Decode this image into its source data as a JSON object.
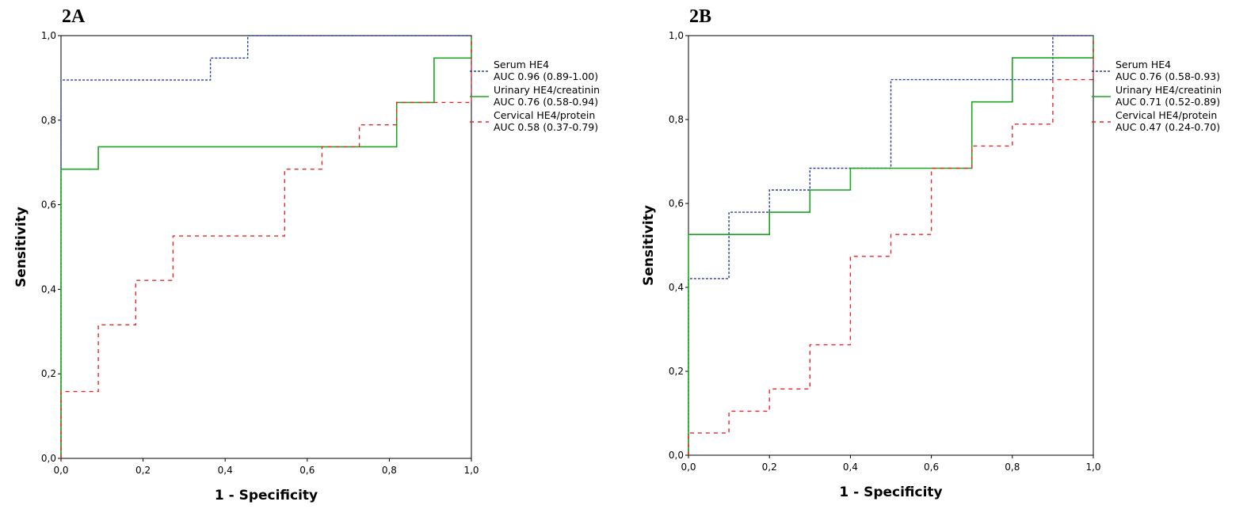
{
  "chart_data": [
    {
      "type": "line",
      "panel_label": "2A",
      "xlabel": "1 - Specificity",
      "ylabel": "Sensitivity",
      "xlim": [
        0,
        1
      ],
      "ylim": [
        0,
        1
      ],
      "xticks": [
        "0,0",
        "0,2",
        "0,4",
        "0,6",
        "0,8",
        "1,0"
      ],
      "yticks": [
        "0,0",
        "0,2",
        "0,4",
        "0,6",
        "0,8",
        "1,0"
      ],
      "legend_position": "right",
      "series": [
        {
          "name": "Serum HE4",
          "auc": "AUC 0.96 (0.89-1.00)",
          "color": "#2b3f9a",
          "dash": "short",
          "x": [
            0,
            0,
            0.364,
            0.364,
            0.455,
            0.455,
            1
          ],
          "y": [
            0,
            0.895,
            0.895,
            0.947,
            0.947,
            1,
            1
          ]
        },
        {
          "name": "Urinary HE4/creatinin",
          "auc": "AUC 0.76 (0.58-0.94)",
          "color": "#1aa620",
          "dash": "solid",
          "x": [
            0,
            0,
            0.091,
            0.091,
            0.818,
            0.818,
            0.909,
            0.909,
            1,
            1
          ],
          "y": [
            0,
            0.684,
            0.684,
            0.737,
            0.737,
            0.842,
            0.842,
            0.947,
            0.947,
            1
          ]
        },
        {
          "name": "Cervical HE4/protein",
          "auc": "AUC 0.58 (0.37-0.79)",
          "color": "#e8262c",
          "dash": "long",
          "x": [
            0,
            0,
            0.091,
            0.091,
            0.182,
            0.182,
            0.273,
            0.273,
            0.545,
            0.545,
            0.636,
            0.636,
            0.727,
            0.727,
            0.818,
            0.818,
            1,
            1
          ],
          "y": [
            0,
            0.158,
            0.158,
            0.316,
            0.316,
            0.421,
            0.421,
            0.526,
            0.526,
            0.684,
            0.684,
            0.737,
            0.737,
            0.789,
            0.789,
            0.842,
            0.842,
            1
          ]
        }
      ]
    },
    {
      "type": "line",
      "panel_label": "2B",
      "xlabel": "1 - Specificity",
      "ylabel": "Sensitivity",
      "xlim": [
        0,
        1
      ],
      "ylim": [
        0,
        1
      ],
      "xticks": [
        "0,0",
        "0,2",
        "0,4",
        "0,6",
        "0,8",
        "1,0"
      ],
      "yticks": [
        "0,0",
        "0,2",
        "0,4",
        "0,6",
        "0,8",
        "1,0"
      ],
      "legend_position": "right",
      "series": [
        {
          "name": "Serum HE4",
          "auc": "AUC 0.76 (0.58-0.93)",
          "color": "#2b3f9a",
          "dash": "short",
          "x": [
            0,
            0,
            0.1,
            0.1,
            0.2,
            0.2,
            0.3,
            0.3,
            0.5,
            0.5,
            0.9,
            0.9,
            1
          ],
          "y": [
            0,
            0.421,
            0.421,
            0.579,
            0.579,
            0.632,
            0.632,
            0.684,
            0.684,
            0.895,
            0.895,
            1,
            1
          ]
        },
        {
          "name": "Urinary HE4/creatinin",
          "auc": "AUC 0.71 (0.52-0.89)",
          "color": "#1aa620",
          "dash": "solid",
          "x": [
            0,
            0,
            0.2,
            0.2,
            0.3,
            0.3,
            0.4,
            0.4,
            0.7,
            0.7,
            0.8,
            0.8,
            1,
            1
          ],
          "y": [
            0,
            0.526,
            0.526,
            0.579,
            0.579,
            0.632,
            0.632,
            0.684,
            0.684,
            0.842,
            0.842,
            0.947,
            0.947,
            1
          ]
        },
        {
          "name": "Cervical HE4/protein",
          "auc": "AUC 0.47 (0.24-0.70)",
          "color": "#e8262c",
          "dash": "long",
          "x": [
            0,
            0,
            0.1,
            0.1,
            0.2,
            0.2,
            0.3,
            0.3,
            0.4,
            0.4,
            0.5,
            0.5,
            0.6,
            0.6,
            0.7,
            0.7,
            0.8,
            0.8,
            0.9,
            0.9,
            1,
            1
          ],
          "y": [
            0,
            0.053,
            0.053,
            0.105,
            0.105,
            0.158,
            0.158,
            0.263,
            0.263,
            0.474,
            0.474,
            0.526,
            0.526,
            0.684,
            0.684,
            0.737,
            0.737,
            0.789,
            0.789,
            0.895,
            0.895,
            1
          ]
        }
      ]
    }
  ]
}
